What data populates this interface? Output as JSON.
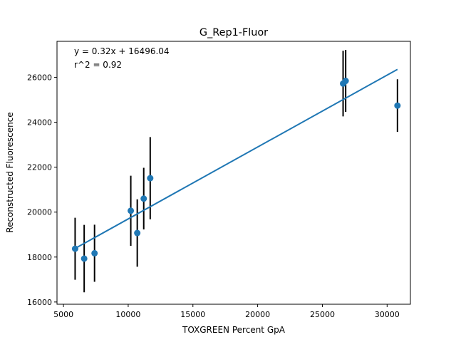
{
  "chart_data": {
    "type": "scatter",
    "title": "G_Rep1-Fluor",
    "xlabel": "TOXGREEN Percent GpA",
    "ylabel": "Reconstructed Fluorescence",
    "xlim": [
      4500,
      31800
    ],
    "ylim": [
      15900,
      27600
    ],
    "xticks": [
      5000,
      10000,
      15000,
      20000,
      25000,
      30000
    ],
    "yticks": [
      16000,
      18000,
      20000,
      22000,
      24000,
      26000
    ],
    "annotation": [
      "y = 0.32x + 16496.04",
      "r^2 = 0.92"
    ],
    "fit": {
      "slope": 0.32,
      "intercept": 16496.04
    },
    "colors": {
      "points": "#1f77b4",
      "fit_line": "#1f77b4",
      "error_bars": "#000000"
    },
    "points": [
      {
        "x": 5900,
        "y": 18370,
        "err": 1380
      },
      {
        "x": 6600,
        "y": 17930,
        "err": 1500
      },
      {
        "x": 7400,
        "y": 18170,
        "err": 1270
      },
      {
        "x": 10200,
        "y": 20060,
        "err": 1560
      },
      {
        "x": 10700,
        "y": 19070,
        "err": 1500
      },
      {
        "x": 11200,
        "y": 20600,
        "err": 1370
      },
      {
        "x": 11700,
        "y": 21510,
        "err": 1830
      },
      {
        "x": 26600,
        "y": 25720,
        "err": 1460
      },
      {
        "x": 26800,
        "y": 25840,
        "err": 1380
      },
      {
        "x": 30800,
        "y": 24740,
        "err": 1170
      }
    ]
  }
}
